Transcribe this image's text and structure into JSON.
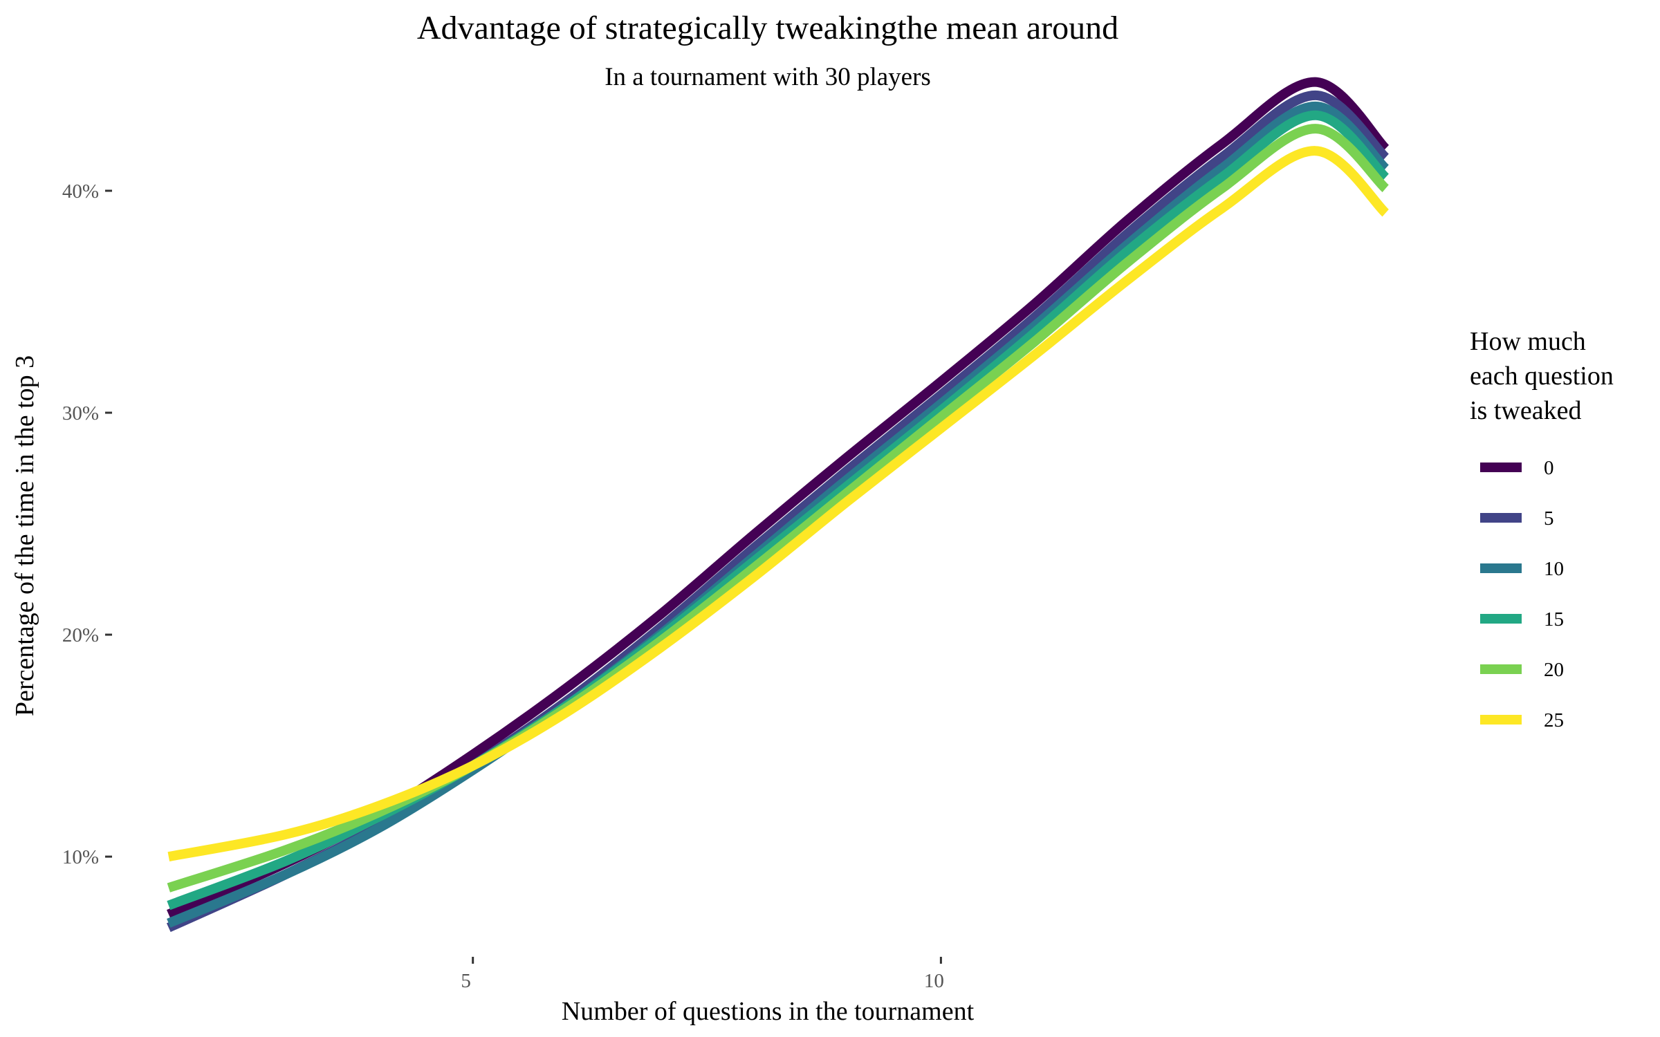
{
  "chart_data": {
    "type": "line",
    "title": "Advantage of strategically tweakingthe mean around",
    "subtitle": "In a tournament with 30 players",
    "xlabel": "Number of questions in the tournament",
    "ylabel": "Percentage of the time in the top 3",
    "xlim": [
      1.5,
      14.8
    ],
    "ylim": [
      5.3,
      43.3
    ],
    "x_ticks": [
      5,
      10
    ],
    "x_tick_labels": [
      "5",
      "10"
    ],
    "y_ticks": [
      10,
      20,
      30,
      40
    ],
    "y_tick_labels": [
      "10%",
      "20%",
      "30%",
      "40%"
    ],
    "grid": false,
    "legend": {
      "title": [
        "How much",
        "each question",
        "is tweaked"
      ],
      "position": "right"
    },
    "x": [
      1.75,
      3.0,
      4.0,
      5.0,
      6.0,
      7.0,
      8.0,
      9.0,
      10.0,
      11.0,
      12.0,
      13.0,
      14.0,
      14.75
    ],
    "series": [
      {
        "name": "0",
        "color": "#440154",
        "values": [
          7.4,
          9.7,
          11.9,
          14.6,
          17.6,
          20.9,
          24.5,
          28.0,
          31.4,
          34.9,
          38.7,
          42.1,
          44.9,
          41.9
        ]
      },
      {
        "name": "5",
        "color": "#414487",
        "values": [
          6.8,
          9.2,
          11.4,
          14.1,
          17.0,
          20.3,
          23.9,
          27.4,
          30.8,
          34.3,
          38.1,
          41.5,
          44.3,
          41.5
        ]
      },
      {
        "name": "10",
        "color": "#2A788E",
        "values": [
          7.0,
          9.2,
          11.3,
          13.9,
          16.8,
          20.0,
          23.5,
          27.0,
          30.4,
          33.9,
          37.6,
          41.0,
          43.8,
          41.0
        ]
      },
      {
        "name": "15",
        "color": "#22A884",
        "values": [
          7.8,
          9.8,
          11.8,
          14.1,
          16.8,
          19.9,
          23.3,
          26.7,
          30.1,
          33.6,
          37.3,
          40.6,
          43.4,
          40.6
        ]
      },
      {
        "name": "20",
        "color": "#7AD151",
        "values": [
          8.6,
          10.3,
          12.0,
          14.1,
          16.7,
          19.7,
          23.0,
          26.4,
          29.8,
          33.2,
          36.8,
          40.1,
          42.8,
          40.1
        ]
      },
      {
        "name": "25",
        "color": "#FDE725",
        "values": [
          10.0,
          11.0,
          12.3,
          14.1,
          16.5,
          19.4,
          22.6,
          26.0,
          29.3,
          32.6,
          36.0,
          39.2,
          41.8,
          39.0
        ]
      }
    ]
  }
}
